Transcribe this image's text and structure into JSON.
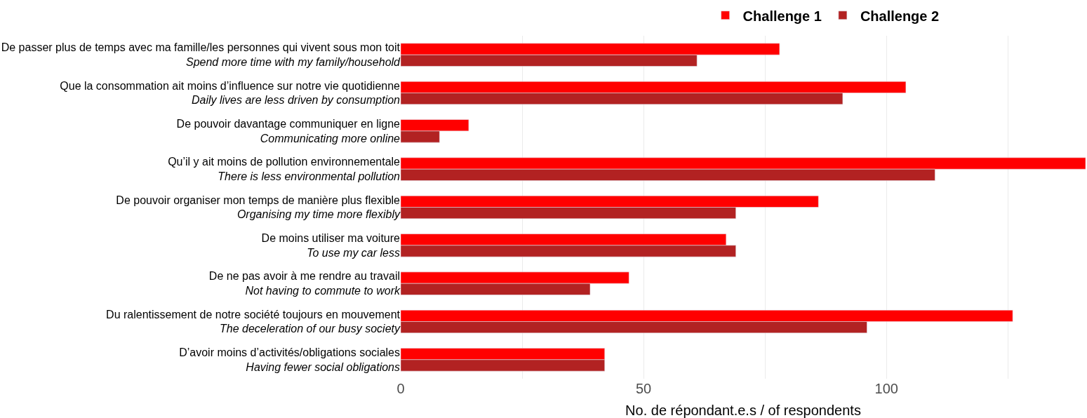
{
  "chart_data": {
    "type": "bar",
    "orientation": "horizontal",
    "xlabel": "No. de répondant.e.s / of respondents",
    "categories": [
      "De passer plus de temps avec ma famille/les personnes qui vivent sous mon toit\nSpend more time with my family/household",
      "Que la consommation ait moins d’influence sur notre vie quotidienne\nDaily lives are less driven by consumption",
      "De pouvoir davantage communiquer en ligne\nCommunicating more online",
      "Qu’il y ait moins de pollution environnementale\nThere is less environmental pollution",
      "De pouvoir organiser mon temps de manière plus flexible\nOrganising my time more flexibly",
      "De moins utiliser ma voiture\nTo use my car less",
      "De ne pas avoir à me rendre au travail\nNot having to commute to work",
      "Du ralentissement de notre société toujours en mouvement\nThe deceleration of our busy society",
      "D’avoir moins d’activités/obligations sociales\nHaving fewer social obligations"
    ],
    "series": [
      {
        "name": "Challenge 1",
        "color": "#ff0000",
        "values": [
          78,
          104,
          14,
          141,
          86,
          67,
          47,
          126,
          42
        ]
      },
      {
        "name": "Challenge 2",
        "color": "#b22222",
        "values": [
          61,
          91,
          8,
          110,
          69,
          69,
          39,
          96,
          42
        ]
      }
    ],
    "xlim": [
      0,
      141
    ],
    "xticks": [
      0,
      {
        "value": 25,
        "label": null
      },
      50,
      {
        "value": 75,
        "label": null
      },
      100,
      {
        "value": 125,
        "label": null
      }
    ],
    "grid": "x",
    "legend": "top"
  }
}
